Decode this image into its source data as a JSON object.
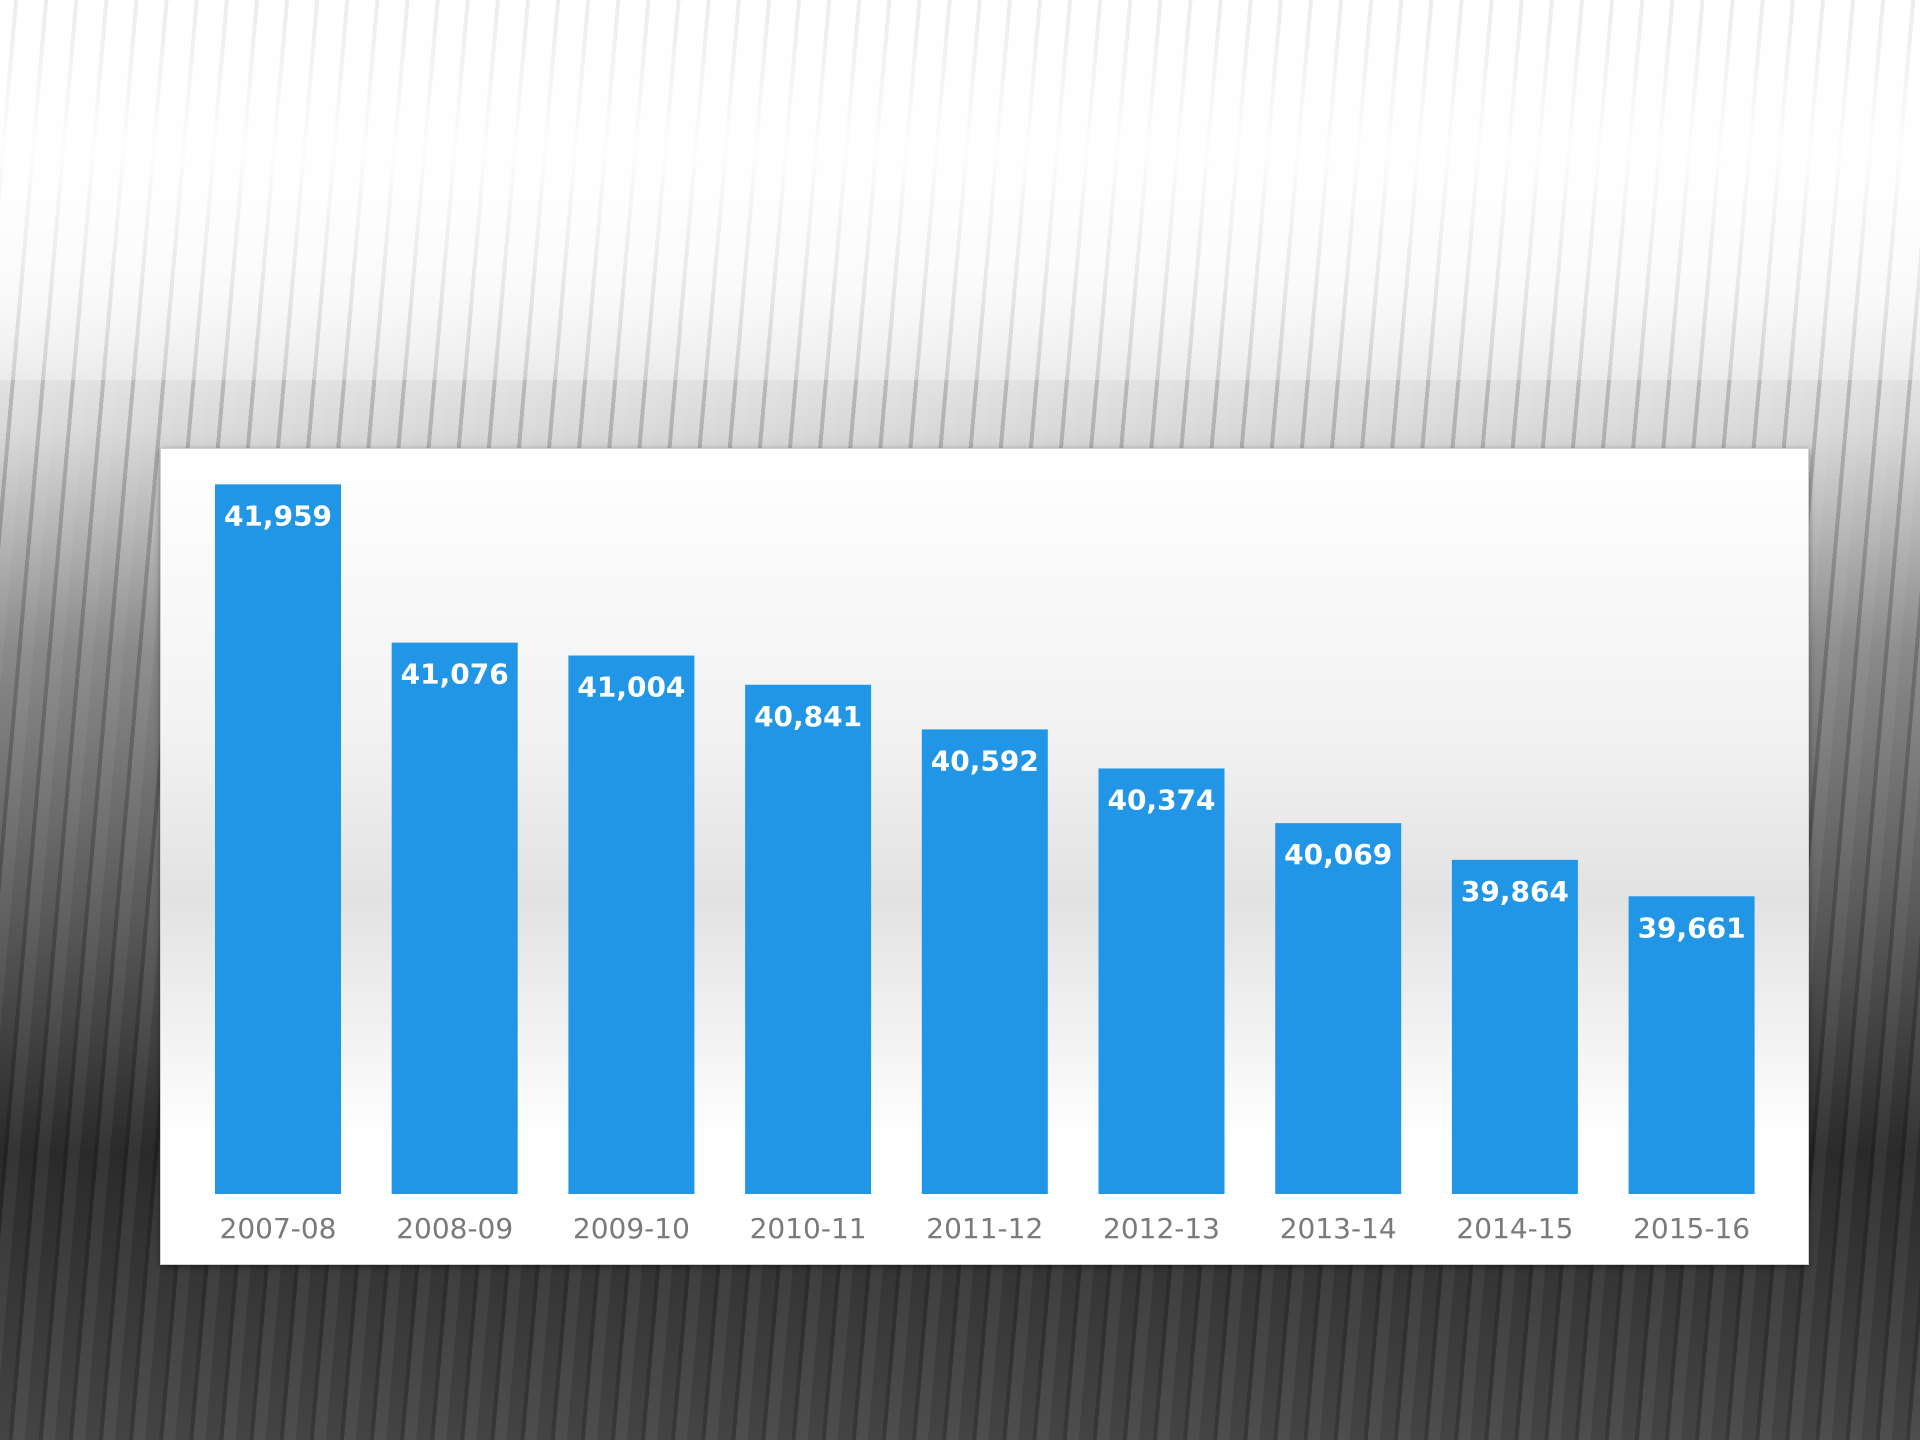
{
  "chart_data": {
    "type": "bar",
    "categories": [
      "2007-08",
      "2008-09",
      "2009-10",
      "2010-11",
      "2011-12",
      "2012-13",
      "2013-14",
      "2014-15",
      "2015-16"
    ],
    "values": [
      41959,
      41076,
      41004,
      40841,
      40592,
      40374,
      40069,
      39864,
      39661
    ],
    "value_labels": [
      "41,959",
      "41,076",
      "41,004",
      "40,841",
      "40,592",
      "40,374",
      "40,069",
      "39,864",
      "39,661"
    ],
    "color": "#2196e6",
    "ylim": [
      38000,
      42000
    ]
  }
}
